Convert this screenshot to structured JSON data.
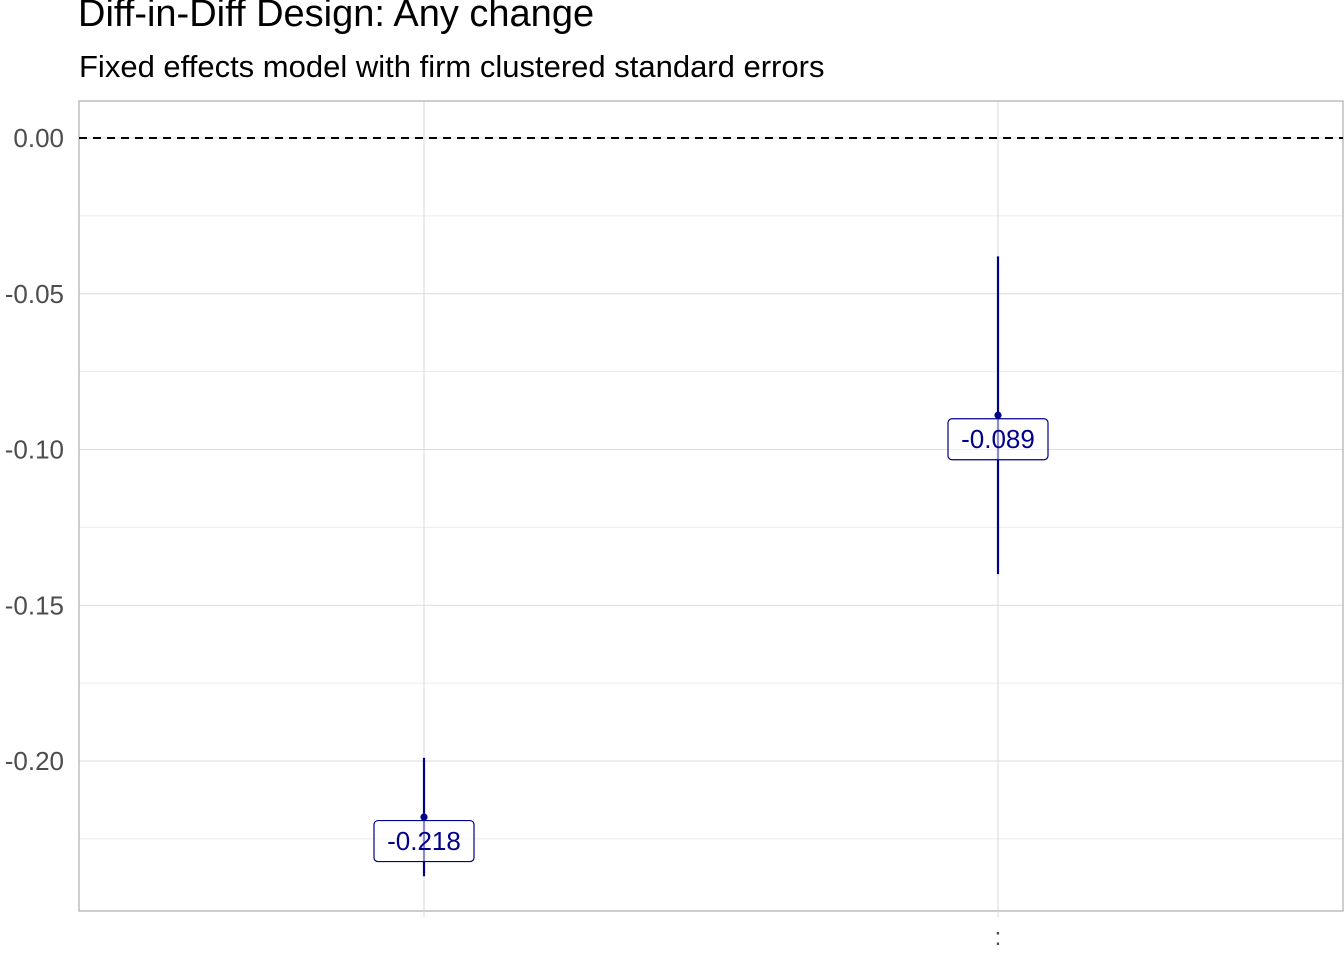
{
  "chart_data": {
    "type": "scatter",
    "title": "Diff-in-Diff Design: Any change",
    "subtitle": "Fixed effects model with firm clustered standard errors",
    "xlabel": "",
    "ylabel": "",
    "x_tick_labels": [
      "",
      ":"
    ],
    "y_ticks": [
      "0.00",
      "-0.05",
      "-0.10",
      "-0.15",
      "-0.20"
    ],
    "ylim": [
      -0.248,
      0.012
    ],
    "grid": true,
    "reference_line": {
      "y": 0.0,
      "style": "dashed"
    },
    "color": "#00008B",
    "points": [
      {
        "x_index": 0,
        "estimate": -0.218,
        "label": "-0.218",
        "ci_low": -0.237,
        "ci_high": -0.199
      },
      {
        "x_index": 1,
        "estimate": -0.089,
        "label": "-0.089",
        "ci_low": -0.14,
        "ci_high": -0.038
      }
    ]
  }
}
